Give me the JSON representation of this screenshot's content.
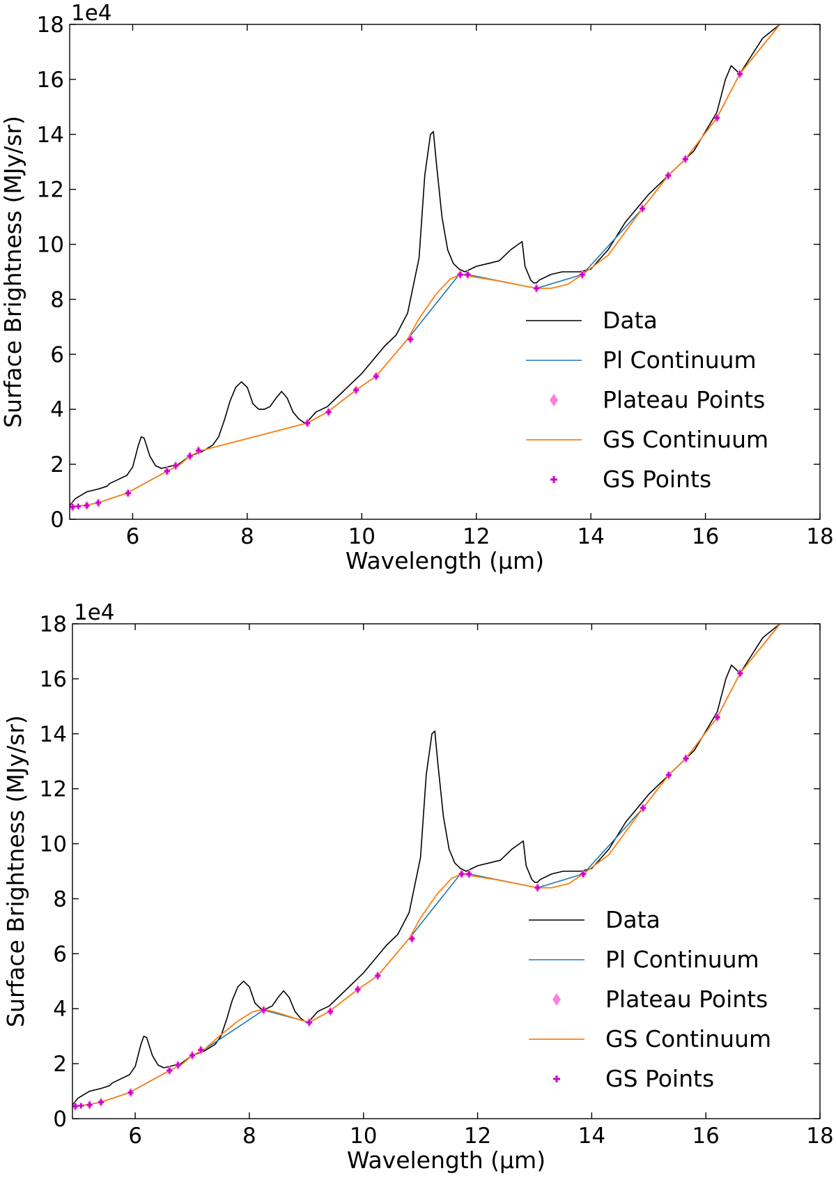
{
  "chart_data": [
    {
      "type": "line",
      "panel": "top",
      "xlabel": "Wavelength (μm)",
      "ylabel": "Surface Brightness (MJy/sr)",
      "offset_text": "1e4",
      "xlim": [
        4.9,
        18
      ],
      "ylim": [
        0,
        18
      ],
      "x_ticks": [
        6,
        8,
        10,
        12,
        14,
        16,
        18
      ],
      "y_ticks": [
        0,
        2,
        4,
        6,
        8,
        10,
        12,
        14,
        16,
        18
      ],
      "legend_position": "lower right",
      "colors": {
        "data": "#000000",
        "pl": "#1f77b4",
        "plateau": "#ff7fdd",
        "gs_line": "#ff7f0e",
        "gs_points": "#cc00cc"
      },
      "series": [
        {
          "name": "Data",
          "style": "line",
          "x": [
            4.9,
            5.0,
            5.2,
            5.4,
            5.55,
            5.6,
            5.7,
            5.9,
            6.0,
            6.1,
            6.15,
            6.2,
            6.3,
            6.4,
            6.5,
            6.6,
            6.8,
            7.0,
            7.2,
            7.4,
            7.5,
            7.6,
            7.7,
            7.8,
            7.9,
            8.0,
            8.1,
            8.2,
            8.3,
            8.4,
            8.5,
            8.6,
            8.7,
            8.8,
            8.9,
            9.0,
            9.05,
            9.2,
            9.4,
            9.6,
            9.8,
            10.0,
            10.2,
            10.4,
            10.6,
            10.8,
            11.0,
            11.1,
            11.2,
            11.25,
            11.3,
            11.4,
            11.5,
            11.6,
            11.7,
            11.8,
            11.9,
            12.0,
            12.2,
            12.4,
            12.6,
            12.8,
            12.85,
            12.95,
            13.0,
            13.05,
            13.1,
            13.3,
            13.5,
            13.8,
            14.0,
            14.3,
            14.6,
            15.0,
            15.4,
            15.8,
            16.2,
            16.35,
            16.45,
            16.6,
            17.0,
            17.3
          ],
          "y": [
            0.5,
            0.75,
            1.0,
            1.1,
            1.2,
            1.3,
            1.4,
            1.6,
            1.9,
            2.7,
            3.0,
            2.95,
            2.3,
            1.95,
            1.85,
            1.9,
            2.0,
            2.3,
            2.45,
            2.7,
            3.0,
            3.6,
            4.3,
            4.8,
            5.0,
            4.8,
            4.2,
            4.0,
            4.0,
            4.1,
            4.4,
            4.65,
            4.4,
            3.9,
            3.65,
            3.5,
            3.55,
            3.9,
            4.1,
            4.5,
            4.9,
            5.3,
            5.8,
            6.3,
            6.7,
            7.5,
            9.5,
            12.5,
            14.0,
            14.1,
            13.0,
            11.0,
            9.8,
            9.3,
            9.1,
            9.0,
            9.1,
            9.2,
            9.3,
            9.4,
            9.8,
            10.1,
            9.2,
            8.7,
            8.6,
            8.6,
            8.7,
            8.9,
            9.0,
            9.0,
            9.1,
            9.8,
            10.8,
            11.8,
            12.6,
            13.4,
            14.8,
            16.0,
            16.5,
            16.2,
            17.5,
            18.0
          ]
        },
        {
          "name": "Pl Continuum",
          "style": "line",
          "x": [
            4.9,
            5.0,
            5.2,
            5.4,
            5.9,
            6.6,
            6.8,
            7.0,
            7.2,
            9.05,
            9.4,
            9.9,
            10.25,
            10.8,
            11.7,
            11.85,
            13.05,
            13.85,
            14.9,
            15.35,
            15.65,
            16.2,
            16.6,
            17.3
          ],
          "y": [
            0.45,
            0.47,
            0.52,
            0.6,
            0.95,
            1.75,
            1.95,
            2.3,
            2.5,
            3.5,
            3.9,
            4.7,
            5.2,
            6.55,
            8.9,
            8.9,
            8.4,
            8.9,
            11.3,
            12.5,
            13.1,
            14.6,
            16.2,
            18.0
          ]
        },
        {
          "name": "Plateau Points",
          "style": "marker",
          "x": [
            4.95,
            5.2,
            5.4,
            5.92,
            6.6,
            6.75,
            7.0,
            7.15,
            9.05,
            9.42,
            9.9,
            10.25,
            10.85,
            11.72,
            11.85,
            13.05,
            13.85,
            14.9,
            15.35,
            15.65,
            16.2,
            16.6
          ],
          "y": [
            0.45,
            0.5,
            0.6,
            0.95,
            1.75,
            1.95,
            2.3,
            2.5,
            3.5,
            3.9,
            4.7,
            5.2,
            6.55,
            8.9,
            8.9,
            8.4,
            8.9,
            11.3,
            12.5,
            13.1,
            14.6,
            16.2
          ]
        },
        {
          "name": "GS Continuum",
          "style": "line",
          "x": [
            4.9,
            5.0,
            5.2,
            5.4,
            5.9,
            6.6,
            6.8,
            7.0,
            7.2,
            9.05,
            9.4,
            9.9,
            10.25,
            10.8,
            11.0,
            11.3,
            11.55,
            11.72,
            11.85,
            12.3,
            12.8,
            13.05,
            13.3,
            13.6,
            13.85,
            14.3,
            14.9,
            15.35,
            15.65,
            16.2,
            16.6,
            17.3
          ],
          "y": [
            0.45,
            0.47,
            0.52,
            0.6,
            0.95,
            1.75,
            1.95,
            2.3,
            2.5,
            3.5,
            3.9,
            4.7,
            5.2,
            6.55,
            7.3,
            8.2,
            8.75,
            8.9,
            8.85,
            8.7,
            8.5,
            8.4,
            8.4,
            8.55,
            8.9,
            9.6,
            11.3,
            12.5,
            13.1,
            14.6,
            16.2,
            18.0
          ]
        },
        {
          "name": "GS Points",
          "style": "marker",
          "x": [
            4.95,
            5.05,
            5.2,
            5.4,
            5.92,
            6.6,
            6.75,
            7.0,
            7.15,
            9.05,
            9.42,
            9.9,
            10.25,
            10.85,
            11.72,
            11.85,
            13.05,
            13.85,
            14.9,
            15.35,
            15.65,
            16.2,
            16.6
          ],
          "y": [
            0.45,
            0.47,
            0.5,
            0.6,
            0.95,
            1.75,
            1.95,
            2.3,
            2.5,
            3.5,
            3.9,
            4.7,
            5.2,
            6.55,
            8.9,
            8.9,
            8.4,
            8.9,
            11.3,
            12.5,
            13.1,
            14.6,
            16.2
          ]
        }
      ]
    },
    {
      "type": "line",
      "panel": "bottom",
      "xlabel": "Wavelength (μm)",
      "ylabel": "Surface Brightness (MJy/sr)",
      "offset_text": "1e4",
      "xlim": [
        4.9,
        18
      ],
      "ylim": [
        0,
        18
      ],
      "x_ticks": [
        6,
        8,
        10,
        12,
        14,
        16,
        18
      ],
      "y_ticks": [
        0,
        2,
        4,
        6,
        8,
        10,
        12,
        14,
        16,
        18
      ],
      "legend_position": "lower right",
      "colors": {
        "data": "#000000",
        "pl": "#1f77b4",
        "plateau": "#ff7fdd",
        "gs_line": "#ff7f0e",
        "gs_points": "#cc00cc"
      },
      "series": [
        {
          "name": "Data",
          "style": "line",
          "x": [
            4.9,
            5.0,
            5.2,
            5.4,
            5.55,
            5.6,
            5.7,
            5.9,
            6.0,
            6.1,
            6.15,
            6.2,
            6.3,
            6.4,
            6.5,
            6.6,
            6.8,
            7.0,
            7.2,
            7.4,
            7.5,
            7.6,
            7.7,
            7.8,
            7.9,
            8.0,
            8.1,
            8.2,
            8.3,
            8.4,
            8.5,
            8.6,
            8.7,
            8.8,
            8.9,
            9.0,
            9.05,
            9.2,
            9.4,
            9.6,
            9.8,
            10.0,
            10.2,
            10.4,
            10.6,
            10.8,
            11.0,
            11.1,
            11.2,
            11.25,
            11.3,
            11.4,
            11.5,
            11.6,
            11.7,
            11.8,
            11.9,
            12.0,
            12.2,
            12.4,
            12.6,
            12.8,
            12.85,
            12.95,
            13.0,
            13.05,
            13.1,
            13.3,
            13.5,
            13.8,
            14.0,
            14.3,
            14.6,
            15.0,
            15.4,
            15.8,
            16.2,
            16.35,
            16.45,
            16.6,
            17.0,
            17.3
          ],
          "y": [
            0.5,
            0.75,
            1.0,
            1.1,
            1.2,
            1.3,
            1.4,
            1.6,
            1.9,
            2.7,
            3.0,
            2.95,
            2.3,
            1.95,
            1.85,
            1.9,
            2.0,
            2.3,
            2.45,
            2.7,
            3.0,
            3.6,
            4.3,
            4.8,
            5.0,
            4.8,
            4.2,
            4.0,
            4.0,
            4.1,
            4.4,
            4.65,
            4.4,
            3.9,
            3.65,
            3.5,
            3.55,
            3.9,
            4.1,
            4.5,
            4.9,
            5.3,
            5.8,
            6.3,
            6.7,
            7.5,
            9.5,
            12.5,
            14.0,
            14.1,
            13.0,
            11.0,
            9.8,
            9.3,
            9.1,
            9.0,
            9.1,
            9.2,
            9.3,
            9.4,
            9.8,
            10.1,
            9.2,
            8.7,
            8.6,
            8.6,
            8.7,
            8.9,
            9.0,
            9.0,
            9.1,
            9.8,
            10.8,
            11.8,
            12.6,
            13.4,
            14.8,
            16.0,
            16.5,
            16.2,
            17.5,
            18.0
          ]
        },
        {
          "name": "Pl Continuum",
          "style": "line",
          "x": [
            4.9,
            5.0,
            5.2,
            5.4,
            5.9,
            6.6,
            6.8,
            7.0,
            7.2,
            8.25,
            9.05,
            9.4,
            9.9,
            10.25,
            10.8,
            11.7,
            11.85,
            13.05,
            13.85,
            14.9,
            15.35,
            15.65,
            16.2,
            16.6,
            17.3
          ],
          "y": [
            0.45,
            0.47,
            0.52,
            0.6,
            0.95,
            1.75,
            1.95,
            2.3,
            2.5,
            3.95,
            3.5,
            3.9,
            4.7,
            5.2,
            6.55,
            8.9,
            8.9,
            8.4,
            8.9,
            11.3,
            12.5,
            13.1,
            14.6,
            16.2,
            18.0
          ]
        },
        {
          "name": "Plateau Points",
          "style": "marker",
          "x": [
            4.95,
            5.2,
            5.4,
            5.92,
            6.6,
            6.75,
            7.0,
            7.15,
            8.25,
            9.05,
            9.42,
            9.9,
            10.25,
            10.85,
            11.72,
            11.85,
            13.05,
            13.85,
            14.9,
            15.35,
            15.65,
            16.2,
            16.6
          ],
          "y": [
            0.45,
            0.5,
            0.6,
            0.95,
            1.75,
            1.95,
            2.3,
            2.5,
            3.95,
            3.5,
            3.9,
            4.7,
            5.2,
            6.55,
            8.9,
            8.9,
            8.4,
            8.9,
            11.3,
            12.5,
            13.1,
            14.6,
            16.2
          ]
        },
        {
          "name": "GS Continuum",
          "style": "line",
          "x": [
            4.9,
            5.0,
            5.2,
            5.4,
            5.9,
            6.6,
            6.8,
            7.0,
            7.2,
            7.5,
            7.8,
            8.05,
            8.25,
            8.5,
            8.8,
            9.05,
            9.4,
            9.9,
            10.25,
            10.8,
            11.0,
            11.3,
            11.55,
            11.72,
            11.85,
            12.3,
            12.8,
            13.05,
            13.3,
            13.6,
            13.85,
            14.3,
            14.9,
            15.35,
            15.65,
            16.2,
            16.6,
            17.3
          ],
          "y": [
            0.45,
            0.47,
            0.52,
            0.6,
            0.95,
            1.75,
            1.95,
            2.3,
            2.5,
            3.05,
            3.55,
            3.88,
            3.98,
            3.85,
            3.65,
            3.5,
            3.9,
            4.7,
            5.2,
            6.55,
            7.3,
            8.2,
            8.75,
            8.9,
            8.85,
            8.7,
            8.5,
            8.4,
            8.4,
            8.55,
            8.9,
            9.6,
            11.3,
            12.5,
            13.1,
            14.6,
            16.2,
            18.0
          ]
        },
        {
          "name": "GS Points",
          "style": "marker",
          "x": [
            4.95,
            5.05,
            5.2,
            5.4,
            5.92,
            6.6,
            6.75,
            7.0,
            7.15,
            8.25,
            9.05,
            9.42,
            9.9,
            10.25,
            10.85,
            11.72,
            11.85,
            13.05,
            13.85,
            14.9,
            15.35,
            15.65,
            16.2,
            16.6
          ],
          "y": [
            0.45,
            0.47,
            0.5,
            0.6,
            0.95,
            1.75,
            1.95,
            2.3,
            2.5,
            3.95,
            3.5,
            3.9,
            4.7,
            5.2,
            6.55,
            8.9,
            8.9,
            8.4,
            8.9,
            11.3,
            12.5,
            13.1,
            14.6,
            16.2
          ]
        }
      ]
    }
  ]
}
